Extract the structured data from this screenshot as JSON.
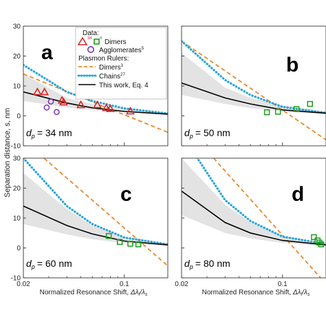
{
  "figure": {
    "ylabel": "Separation distance, s, nm",
    "xlabel_prefix": "Normalized Resonance Shift, ",
    "xlabel_math": "Δλ",
    "xlabel_sub1": "l",
    "xlabel_slash": "/λ",
    "xlabel_sub2": "s"
  },
  "colors": {
    "data_red": "#d62728",
    "data_purple": "#7b2fbe",
    "data_green": "#1a9e1a",
    "dimers_ruler": "#e8892b",
    "chains_ruler": "#2aa6d6",
    "this_work": "#000000",
    "band": "#e3e3e3"
  },
  "legend": {
    "data_title": "Data:",
    "dimers": "Dimers",
    "dimers_sup_red": "34",
    "dimers_sup_green": "4",
    "agglomerates": "Agglomerates",
    "agglomerates_sup": "5",
    "rulers_title": "Plasmon Rulers:",
    "rulers_dimers": "Dimers",
    "rulers_dimers_sup": "3",
    "rulers_chains": "Chains",
    "rulers_chains_sup": "27",
    "this_work": "This work, Eq. 4"
  },
  "chart_data": [
    {
      "type": "line",
      "panel": "a",
      "dp_label_var": "d",
      "dp_label_sub": "p",
      "dp_label_value": "= 34 nm",
      "xscale": "log",
      "xlim": [
        0.02,
        0.2
      ],
      "ylim": [
        -10,
        30
      ],
      "xticks": [
        "0.02",
        "0.1"
      ],
      "yticks": [
        "-10",
        "0",
        "10",
        "20",
        "30"
      ],
      "series": [
        {
          "name": "Dimers",
          "role": "ruler-dimers",
          "x": [
            0.02,
            0.2
          ],
          "y": [
            14.0,
            -5.5
          ]
        },
        {
          "name": "Chains",
          "role": "ruler-chains",
          "x": [
            0.02,
            0.04,
            0.06,
            0.1,
            0.2
          ],
          "y": [
            17.0,
            8.0,
            5.0,
            2.5,
            0.8
          ]
        },
        {
          "name": "This work, Eq. 4",
          "role": "this-work",
          "x": [
            0.02,
            0.04,
            0.06,
            0.1,
            0.2
          ],
          "y": [
            8.0,
            4.3,
            2.7,
            1.5,
            0.6
          ]
        },
        {
          "name": "band-upper",
          "role": "band-upper",
          "x": [
            0.02,
            0.04,
            0.06,
            0.1,
            0.2
          ],
          "y": [
            14.0,
            6.0,
            4.0,
            2.5,
            1.1
          ]
        },
        {
          "name": "band-lower",
          "role": "band-lower",
          "x": [
            0.02,
            0.04,
            0.06,
            0.1,
            0.2
          ],
          "y": [
            5.0,
            2.8,
            1.9,
            1.2,
            0.3
          ]
        },
        {
          "name": "Dimers",
          "role": "marker-red-triangle",
          "x": [
            0.025,
            0.028,
            0.037,
            0.038,
            0.05,
            0.065,
            0.075,
            0.08,
            0.11
          ],
          "y": [
            8.0,
            8.0,
            5.2,
            4.6,
            3.7,
            3.7,
            2.7,
            2.4,
            1.6
          ]
        },
        {
          "name": "Agglomerates",
          "role": "marker-purple-circle",
          "x": [
            0.029,
            0.031,
            0.034
          ],
          "y": [
            2.8,
            4.8,
            1.3
          ]
        }
      ]
    },
    {
      "type": "line",
      "panel": "b",
      "dp_label_var": "d",
      "dp_label_sub": "p",
      "dp_label_value": "= 50 nm",
      "xscale": "log",
      "xlim": [
        0.02,
        0.2
      ],
      "ylim": [
        -10,
        30
      ],
      "xticks": [
        "0.02",
        "0.1"
      ],
      "yticks": [
        "-10",
        "0",
        "10",
        "20",
        "30"
      ],
      "series": [
        {
          "name": "Dimers",
          "role": "ruler-dimers",
          "x": [
            0.02,
            0.2
          ],
          "y": [
            25.0,
            -8.0
          ]
        },
        {
          "name": "Chains",
          "role": "ruler-chains",
          "x": [
            0.02,
            0.04,
            0.06,
            0.1,
            0.2
          ],
          "y": [
            25.0,
            12.0,
            7.0,
            3.0,
            1.0
          ]
        },
        {
          "name": "This work, Eq. 4",
          "role": "this-work",
          "x": [
            0.02,
            0.04,
            0.06,
            0.1,
            0.2
          ],
          "y": [
            11.0,
            6.0,
            4.0,
            2.0,
            0.9
          ]
        },
        {
          "name": "band-upper",
          "role": "band-upper",
          "x": [
            0.02,
            0.04,
            0.06,
            0.1,
            0.2
          ],
          "y": [
            21.0,
            9.5,
            6.0,
            3.5,
            1.4
          ]
        },
        {
          "name": "band-lower",
          "role": "band-lower",
          "x": [
            0.02,
            0.04,
            0.06,
            0.1,
            0.2
          ],
          "y": [
            7.0,
            4.0,
            2.6,
            1.5,
            0.5
          ]
        },
        {
          "name": "Dimers",
          "role": "marker-green-square",
          "x": [
            0.155,
            0.125,
            0.093,
            0.078
          ],
          "y": [
            4.0,
            2.3,
            1.4,
            1.2
          ]
        }
      ]
    },
    {
      "type": "line",
      "panel": "c",
      "dp_label_var": "d",
      "dp_label_sub": "p",
      "dp_label_value": "= 60 nm",
      "xscale": "log",
      "xlim": [
        0.02,
        0.2
      ],
      "ylim": [
        -10,
        30
      ],
      "xticks": [
        "0.02",
        "0.1"
      ],
      "yticks": [
        "-10",
        "0",
        "10",
        "20",
        "30"
      ],
      "series": [
        {
          "name": "Dimers",
          "role": "ruler-dimers",
          "x": [
            0.02,
            0.2
          ],
          "y": [
            36.0,
            -6.0
          ]
        },
        {
          "name": "Chains",
          "role": "ruler-chains",
          "x": [
            0.02,
            0.04,
            0.06,
            0.1,
            0.2
          ],
          "y": [
            30.0,
            14.0,
            8.0,
            3.5,
            1.2
          ]
        },
        {
          "name": "This work, Eq. 4",
          "role": "this-work",
          "x": [
            0.02,
            0.04,
            0.06,
            0.1,
            0.2
          ],
          "y": [
            14.0,
            7.5,
            4.7,
            2.3,
            1.0
          ]
        },
        {
          "name": "band-upper",
          "role": "band-upper",
          "x": [
            0.02,
            0.04,
            0.06,
            0.1,
            0.2
          ],
          "y": [
            25.0,
            13.0,
            7.5,
            3.6,
            1.5
          ]
        },
        {
          "name": "band-lower",
          "role": "band-lower",
          "x": [
            0.02,
            0.04,
            0.06,
            0.1,
            0.2
          ],
          "y": [
            8.0,
            4.5,
            2.9,
            1.6,
            0.6
          ]
        },
        {
          "name": "Dimers",
          "role": "marker-green-square",
          "x": [
            0.078,
            0.093,
            0.11,
            0.125
          ],
          "y": [
            4.0,
            2.0,
            1.4,
            1.2
          ]
        }
      ]
    },
    {
      "type": "line",
      "panel": "d",
      "dp_label_var": "d",
      "dp_label_sub": "p",
      "dp_label_value": "= 80 nm",
      "xscale": "log",
      "xlim": [
        0.02,
        0.2
      ],
      "ylim": [
        -10,
        30
      ],
      "xticks": [
        "0.02",
        "0.1"
      ],
      "yticks": [
        "-10",
        "0",
        "10",
        "20",
        "30"
      ],
      "series": [
        {
          "name": "Dimers",
          "role": "ruler-dimers",
          "x": [
            0.02,
            0.2
          ],
          "y": [
            42.0,
            -12.0
          ]
        },
        {
          "name": "Chains",
          "role": "ruler-chains",
          "x": [
            0.02,
            0.04,
            0.06,
            0.1,
            0.2
          ],
          "y": [
            38.0,
            16.0,
            9.0,
            3.8,
            1.3
          ]
        },
        {
          "name": "This work, Eq. 4",
          "role": "this-work",
          "x": [
            0.02,
            0.04,
            0.06,
            0.1,
            0.2
          ],
          "y": [
            19.0,
            8.5,
            5.0,
            2.5,
            1.0
          ]
        },
        {
          "name": "band-upper",
          "role": "band-upper",
          "x": [
            0.02,
            0.04,
            0.06,
            0.1,
            0.2
          ],
          "y": [
            30.0,
            14.5,
            8.5,
            4.0,
            1.6
          ]
        },
        {
          "name": "band-lower",
          "role": "band-lower",
          "x": [
            0.02,
            0.04,
            0.06,
            0.1,
            0.2
          ],
          "y": [
            11.0,
            5.0,
            3.2,
            1.7,
            0.6
          ]
        },
        {
          "name": "Dimers",
          "role": "marker-green-square",
          "x": [
            0.165,
            0.175,
            0.18,
            0.185
          ],
          "y": [
            3.6,
            2.5,
            1.8,
            1.2
          ]
        }
      ]
    }
  ]
}
